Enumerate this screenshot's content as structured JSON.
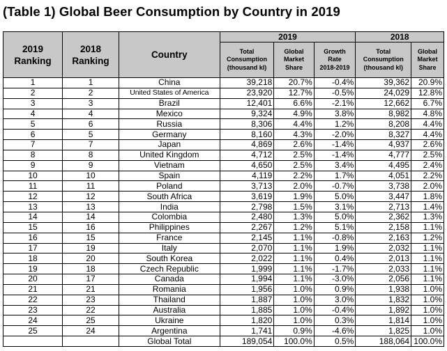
{
  "title": "(Table 1) Global Beer Consumption by Country in 2019",
  "headers": {
    "rank2019": [
      "2019",
      "Ranking"
    ],
    "rank2018": [
      "2018",
      "Ranking"
    ],
    "country": "Country",
    "group2019": "2019",
    "group2018": "2018",
    "total2019": [
      "Total",
      "Consumption",
      "(thousand kl)"
    ],
    "share2019": [
      "Global",
      "Market",
      "Share"
    ],
    "growth": [
      "Growth",
      "Rate",
      "2018-2019"
    ],
    "total2018": [
      "Total",
      "Consumption",
      "(thousand kl)"
    ],
    "share2018": [
      "Global",
      "Market",
      "Share"
    ]
  },
  "rows": [
    {
      "r19": "1",
      "r18": "1",
      "country": "China",
      "c19": "39,218",
      "s19": "20.7%",
      "g": "-0.4%",
      "c18": "39,362",
      "s18": "20.9%"
    },
    {
      "r19": "2",
      "r18": "2",
      "country": "United States of America",
      "c19": "23,920",
      "s19": "12.7%",
      "g": "-0.5%",
      "c18": "24,029",
      "s18": "12.8%"
    },
    {
      "r19": "3",
      "r18": "3",
      "country": "Brazil",
      "c19": "12,401",
      "s19": "6.6%",
      "g": "-2.1%",
      "c18": "12,662",
      "s18": "6.7%"
    },
    {
      "r19": "4",
      "r18": "4",
      "country": "Mexico",
      "c19": "9,324",
      "s19": "4.9%",
      "g": "3.8%",
      "c18": "8,982",
      "s18": "4.8%"
    },
    {
      "r19": "5",
      "r18": "6",
      "country": "Russia",
      "c19": "8,306",
      "s19": "4.4%",
      "g": "1.2%",
      "c18": "8,208",
      "s18": "4.4%"
    },
    {
      "r19": "6",
      "r18": "5",
      "country": "Germany",
      "c19": "8,160",
      "s19": "4.3%",
      "g": "-2.0%",
      "c18": "8,327",
      "s18": "4.4%"
    },
    {
      "r19": "7",
      "r18": "7",
      "country": "Japan",
      "c19": "4,869",
      "s19": "2.6%",
      "g": "-1.4%",
      "c18": "4,937",
      "s18": "2.6%"
    },
    {
      "r19": "8",
      "r18": "8",
      "country": "United Kingdom",
      "c19": "4,712",
      "s19": "2.5%",
      "g": "-1.4%",
      "c18": "4,777",
      "s18": "2.5%"
    },
    {
      "r19": "9",
      "r18": "9",
      "country": "Vietnam",
      "c19": "4,650",
      "s19": "2.5%",
      "g": "3.4%",
      "c18": "4,495",
      "s18": "2.4%"
    },
    {
      "r19": "10",
      "r18": "10",
      "country": "Spain",
      "c19": "4,119",
      "s19": "2.2%",
      "g": "1.7%",
      "c18": "4,051",
      "s18": "2.2%"
    },
    {
      "r19": "11",
      "r18": "11",
      "country": "Poland",
      "c19": "3,713",
      "s19": "2.0%",
      "g": "-0.7%",
      "c18": "3,738",
      "s18": "2.0%"
    },
    {
      "r19": "12",
      "r18": "12",
      "country": "South Africa",
      "c19": "3,619",
      "s19": "1.9%",
      "g": "5.0%",
      "c18": "3,447",
      "s18": "1.8%"
    },
    {
      "r19": "13",
      "r18": "13",
      "country": "India",
      "c19": "2,798",
      "s19": "1.5%",
      "g": "3.1%",
      "c18": "2,713",
      "s18": "1.4%"
    },
    {
      "r19": "14",
      "r18": "14",
      "country": "Colombia",
      "c19": "2,480",
      "s19": "1.3%",
      "g": "5.0%",
      "c18": "2,362",
      "s18": "1.3%"
    },
    {
      "r19": "15",
      "r18": "16",
      "country": "Philippines",
      "c19": "2,267",
      "s19": "1.2%",
      "g": "5.1%",
      "c18": "2,158",
      "s18": "1.1%"
    },
    {
      "r19": "16",
      "r18": "15",
      "country": "France",
      "c19": "2,145",
      "s19": "1.1%",
      "g": "-0.8%",
      "c18": "2,163",
      "s18": "1.2%"
    },
    {
      "r19": "17",
      "r18": "19",
      "country": "Italy",
      "c19": "2,070",
      "s19": "1.1%",
      "g": "1.9%",
      "c18": "2,032",
      "s18": "1.1%"
    },
    {
      "r19": "18",
      "r18": "20",
      "country": "South Korea",
      "c19": "2,022",
      "s19": "1.1%",
      "g": "0.4%",
      "c18": "2,013",
      "s18": "1.1%"
    },
    {
      "r19": "19",
      "r18": "18",
      "country": "Czech Republic",
      "c19": "1,999",
      "s19": "1.1%",
      "g": "-1.7%",
      "c18": "2,033",
      "s18": "1.1%"
    },
    {
      "r19": "20",
      "r18": "17",
      "country": "Canada",
      "c19": "1,994",
      "s19": "1.1%",
      "g": "-3.0%",
      "c18": "2,056",
      "s18": "1.1%"
    },
    {
      "r19": "21",
      "r18": "21",
      "country": "Romania",
      "c19": "1,956",
      "s19": "1.0%",
      "g": "0.9%",
      "c18": "1,938",
      "s18": "1.0%"
    },
    {
      "r19": "22",
      "r18": "23",
      "country": "Thailand",
      "c19": "1,887",
      "s19": "1.0%",
      "g": "3.0%",
      "c18": "1,832",
      "s18": "1.0%"
    },
    {
      "r19": "23",
      "r18": "22",
      "country": "Australia",
      "c19": "1,885",
      "s19": "1.0%",
      "g": "-0.4%",
      "c18": "1,892",
      "s18": "1.0%"
    },
    {
      "r19": "24",
      "r18": "25",
      "country": "Ukraine",
      "c19": "1,820",
      "s19": "1.0%",
      "g": "0.3%",
      "c18": "1,814",
      "s18": "1.0%"
    },
    {
      "r19": "25",
      "r18": "24",
      "country": "Argentina",
      "c19": "1,741",
      "s19": "0.9%",
      "g": "-4.6%",
      "c18": "1,825",
      "s18": "1.0%"
    }
  ],
  "total": {
    "label": "Global Total",
    "c19": "189,054",
    "s19": "100.0%",
    "g": "0.5%",
    "c18": "188,064",
    "s18": "100.0%"
  }
}
